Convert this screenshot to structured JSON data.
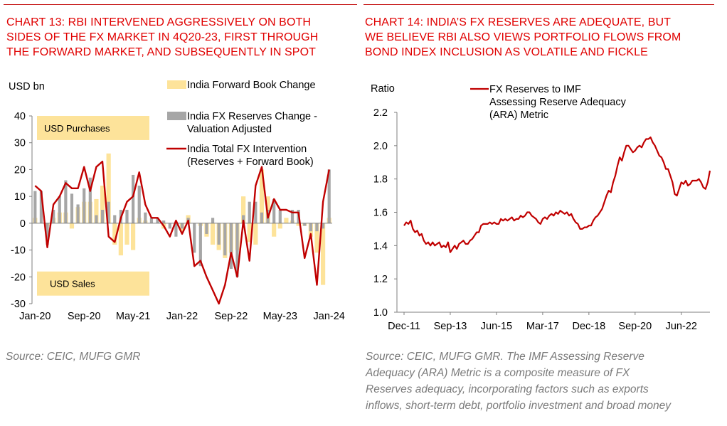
{
  "left": {
    "title_lines": [
      "CHART 13: RBI INTERVENED AGGRESSIVELY ON BOTH",
      "SIDES OF THE FX MARKET IN 4Q20-23, FIRST THROUGH",
      "THE FORWARD MARKET, AND SUBSEQUENTLY IN SPOT"
    ],
    "source": "Source: CEIC, MUFG GMR"
  },
  "right": {
    "title_lines": [
      "CHART 14: INDIA’S FX RESERVES ARE ADEQUATE, BUT",
      "WE BELIEVE RBI ALSO VIEWS PORTFOLIO FLOWS FROM",
      "BOND INDEX INCLUSION AS VOLATILE AND FICKLE"
    ],
    "source_lines": [
      "Source: CEIC, MUFG GMR.  The IMF Assessing Reserve",
      "Adequacy (ARA) Metric is a composite measure of FX",
      "Reserves adequacy, incorporating factors such as exports",
      "inflows, short-term debt, portfolio investment and broad money"
    ]
  },
  "colors": {
    "accent_red": "#e00000",
    "rule_red": "#c00000",
    "forward_bar": "#fde39a",
    "reserves_bar": "#a6a6a6",
    "line": "#c00000",
    "label_box": "#fde39a",
    "axis": "#7f7f7f",
    "source_text": "#7a7a7a"
  },
  "chart_data": [
    {
      "type": "bar",
      "ylabel": "USD bn",
      "ylim": [
        -30,
        40
      ],
      "yticks": [
        -30,
        -20,
        -10,
        0,
        10,
        20,
        30,
        40
      ],
      "xtick_labels": [
        "Jan-20",
        "Sep-20",
        "May-21",
        "Jan-22",
        "Sep-22",
        "May-23",
        "Jan-24"
      ],
      "xtick_months": [
        0,
        8,
        16,
        24,
        32,
        40,
        48
      ],
      "annotations": [
        "USD Purchases",
        "USD Sales"
      ],
      "legend": [
        "India Forward Book Change",
        "India FX Reserves Change - Valuation Adjusted",
        "India Total FX Intervention (Reserves + Forward Book)"
      ],
      "legend_lines": [
        [
          "India Forward Book Change"
        ],
        [
          "India FX Reserves Change -",
          "Valuation Adjusted"
        ],
        [
          "India Total FX Intervention",
          "(Reserves + Forward Book)"
        ]
      ],
      "months": [
        "Jan-20",
        "Feb-20",
        "Mar-20",
        "Apr-20",
        "May-20",
        "Jun-20",
        "Jul-20",
        "Aug-20",
        "Sep-20",
        "Oct-20",
        "Nov-20",
        "Dec-20",
        "Jan-21",
        "Feb-21",
        "Mar-21",
        "Apr-21",
        "May-21",
        "Jun-21",
        "Jul-21",
        "Aug-21",
        "Sep-21",
        "Oct-21",
        "Nov-21",
        "Dec-21",
        "Jan-22",
        "Feb-22",
        "Mar-22",
        "Apr-22",
        "May-22",
        "Jun-22",
        "Jul-22",
        "Aug-22",
        "Sep-22",
        "Oct-22",
        "Nov-22",
        "Dec-22",
        "Jan-23",
        "Feb-23",
        "Mar-23",
        "Apr-23",
        "May-23",
        "Jun-23",
        "Jul-23",
        "Aug-23",
        "Sep-23",
        "Oct-23",
        "Nov-23",
        "Dec-23",
        "Jan-24"
      ],
      "series": [
        {
          "name": "India Forward Book Change",
          "kind": "bar",
          "values": [
            2,
            0,
            -1,
            2,
            4,
            4,
            -2,
            6,
            8,
            8,
            9,
            14,
            26,
            -8,
            -12,
            -8,
            -10,
            2,
            1,
            0,
            0,
            -2,
            0,
            0,
            -3,
            3,
            0,
            -1,
            -5,
            -8,
            -10,
            -13,
            -11,
            -10,
            10,
            -7,
            -8,
            20,
            10,
            -5,
            -2,
            2,
            1,
            -1,
            -1,
            -5,
            -11,
            -23,
            2
          ],
          "bar_adjust": [
            2,
            0,
            -1,
            2,
            4,
            4,
            -2,
            6,
            8,
            8,
            9,
            14,
            26,
            -8,
            -12,
            -8,
            -10,
            2,
            1,
            0,
            0,
            -2,
            0,
            0,
            -3,
            3,
            0,
            -1,
            -5,
            -8,
            -10,
            -13,
            -11,
            -10,
            10,
            -7,
            -8,
            20,
            10,
            -5,
            -2,
            2,
            1,
            -1,
            -1,
            -5,
            -11,
            -23,
            2
          ]
        },
        {
          "name": "India FX Reserves Change - Valuation Adjusted",
          "kind": "bar",
          "values": [
            12,
            12,
            -8,
            5,
            10,
            16,
            11,
            7,
            13,
            17,
            3,
            5,
            8,
            3,
            5,
            5,
            18,
            14,
            4,
            2,
            2,
            1,
            -2,
            -5,
            -2,
            2,
            -11,
            -16,
            -4,
            2,
            -8,
            -12,
            -17,
            -20,
            3,
            8,
            8,
            4,
            5,
            9,
            5,
            0,
            5,
            5,
            -1,
            -3,
            -3,
            -2,
            20
          ]
        },
        {
          "name": "India Total FX Intervention (Reserves + Forward Book)",
          "kind": "line",
          "values": [
            14,
            12,
            -9,
            7,
            10,
            15,
            13,
            13,
            21,
            12,
            21,
            23,
            -5,
            -7,
            2,
            8,
            10,
            19,
            7,
            2,
            2,
            -1,
            -5,
            1,
            -4,
            1,
            -16,
            -14,
            -20,
            -25,
            -30,
            -23,
            -11,
            -20,
            1,
            -14,
            14,
            21,
            2,
            9,
            5,
            5,
            4,
            4,
            -13,
            -4,
            -23,
            8,
            20
          ]
        }
      ]
    },
    {
      "type": "line",
      "ylabel": "Ratio",
      "ylim": [
        1.0,
        2.2
      ],
      "yticks": [
        1.0,
        1.2,
        1.4,
        1.6,
        1.8,
        2.0,
        2.2
      ],
      "xtick_labels": [
        "Dec-11",
        "Sep-13",
        "Jun-15",
        "Mar-17",
        "Dec-18",
        "Sep-20",
        "Jun-22"
      ],
      "xtick_months": [
        0,
        21,
        42,
        63,
        84,
        105,
        126
      ],
      "legend": [
        "FX Reserves to IMF Assessing Reserve Adequacy (ARA) Metric"
      ],
      "legend_lines": [
        "FX Reserves to IMF",
        "Assessing Reserve Adequacy",
        "(ARA) Metric"
      ],
      "series": [
        {
          "name": "FX Reserves to IMF Assessing Reserve Adequacy (ARA) Metric",
          "points": [
            [
              0,
              1.52
            ],
            [
              1,
              1.54
            ],
            [
              2,
              1.53
            ],
            [
              3,
              1.55
            ],
            [
              4,
              1.5
            ],
            [
              5,
              1.48
            ],
            [
              6,
              1.49
            ],
            [
              7,
              1.46
            ],
            [
              8,
              1.47
            ],
            [
              9,
              1.43
            ],
            [
              10,
              1.41
            ],
            [
              11,
              1.42
            ],
            [
              12,
              1.4
            ],
            [
              13,
              1.42
            ],
            [
              14,
              1.4
            ],
            [
              15,
              1.41
            ],
            [
              16,
              1.42
            ],
            [
              17,
              1.39
            ],
            [
              18,
              1.4
            ],
            [
              19,
              1.39
            ],
            [
              20,
              1.42
            ],
            [
              21,
              1.36
            ],
            [
              22,
              1.38
            ],
            [
              23,
              1.4
            ],
            [
              24,
              1.38
            ],
            [
              25,
              1.41
            ],
            [
              26,
              1.42
            ],
            [
              27,
              1.43
            ],
            [
              28,
              1.41
            ],
            [
              29,
              1.41
            ],
            [
              30,
              1.43
            ],
            [
              31,
              1.44
            ],
            [
              32,
              1.46
            ],
            [
              33,
              1.48
            ],
            [
              34,
              1.48
            ],
            [
              35,
              1.52
            ],
            [
              36,
              1.53
            ],
            [
              37,
              1.53
            ],
            [
              38,
              1.53
            ],
            [
              39,
              1.54
            ],
            [
              40,
              1.53
            ],
            [
              41,
              1.54
            ],
            [
              42,
              1.53
            ],
            [
              43,
              1.53
            ],
            [
              44,
              1.56
            ],
            [
              45,
              1.55
            ],
            [
              46,
              1.56
            ],
            [
              47,
              1.55
            ],
            [
              48,
              1.56
            ],
            [
              49,
              1.57
            ],
            [
              50,
              1.55
            ],
            [
              51,
              1.56
            ],
            [
              52,
              1.56
            ],
            [
              53,
              1.58
            ],
            [
              54,
              1.57
            ],
            [
              55,
              1.58
            ],
            [
              56,
              1.6
            ],
            [
              57,
              1.6
            ],
            [
              58,
              1.58
            ],
            [
              59,
              1.57
            ],
            [
              60,
              1.56
            ],
            [
              61,
              1.54
            ],
            [
              62,
              1.53
            ],
            [
              63,
              1.56
            ],
            [
              64,
              1.57
            ],
            [
              65,
              1.56
            ],
            [
              66,
              1.58
            ],
            [
              67,
              1.59
            ],
            [
              68,
              1.58
            ],
            [
              69,
              1.6
            ],
            [
              70,
              1.59
            ],
            [
              71,
              1.61
            ],
            [
              72,
              1.6
            ],
            [
              73,
              1.59
            ],
            [
              74,
              1.6
            ],
            [
              75,
              1.58
            ],
            [
              76,
              1.59
            ],
            [
              77,
              1.56
            ],
            [
              78,
              1.54
            ],
            [
              79,
              1.53
            ],
            [
              80,
              1.5
            ],
            [
              81,
              1.5
            ],
            [
              82,
              1.51
            ],
            [
              83,
              1.51
            ],
            [
              84,
              1.52
            ],
            [
              85,
              1.52
            ],
            [
              86,
              1.55
            ],
            [
              87,
              1.57
            ],
            [
              88,
              1.58
            ],
            [
              89,
              1.6
            ],
            [
              90,
              1.62
            ],
            [
              91,
              1.66
            ],
            [
              92,
              1.7
            ],
            [
              93,
              1.73
            ],
            [
              94,
              1.72
            ],
            [
              95,
              1.78
            ],
            [
              96,
              1.82
            ],
            [
              97,
              1.88
            ],
            [
              98,
              1.93
            ],
            [
              99,
              1.91
            ],
            [
              100,
              1.96
            ],
            [
              101,
              2.0
            ],
            [
              102,
              2.0
            ],
            [
              103,
              1.98
            ],
            [
              104,
              1.96
            ],
            [
              105,
              1.97
            ],
            [
              106,
              1.99
            ],
            [
              107,
              2.0
            ],
            [
              108,
              1.99
            ],
            [
              109,
              2.02
            ],
            [
              110,
              2.04
            ],
            [
              111,
              2.04
            ],
            [
              112,
              2.05
            ],
            [
              113,
              2.02
            ],
            [
              114,
              2.0
            ],
            [
              115,
              1.97
            ],
            [
              116,
              1.94
            ],
            [
              117,
              1.93
            ],
            [
              118,
              1.9
            ],
            [
              119,
              1.86
            ],
            [
              120,
              1.86
            ],
            [
              121,
              1.82
            ],
            [
              122,
              1.78
            ],
            [
              123,
              1.71
            ],
            [
              124,
              1.7
            ],
            [
              125,
              1.74
            ],
            [
              126,
              1.78
            ],
            [
              127,
              1.77
            ],
            [
              128,
              1.79
            ],
            [
              129,
              1.76
            ],
            [
              130,
              1.77
            ],
            [
              131,
              1.79
            ],
            [
              132,
              1.79
            ],
            [
              133,
              1.79
            ],
            [
              134,
              1.8
            ],
            [
              135,
              1.78
            ],
            [
              136,
              1.75
            ],
            [
              137,
              1.74
            ],
            [
              138,
              1.78
            ],
            [
              139,
              1.85
            ]
          ]
        }
      ]
    }
  ]
}
